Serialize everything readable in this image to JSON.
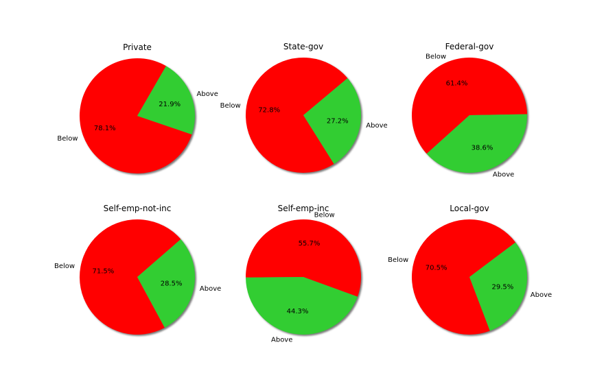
{
  "chart_data": [
    {
      "type": "pie",
      "title": "Private",
      "labels": [
        "Below",
        "Above"
      ],
      "values": [
        78.1,
        21.9
      ],
      "percent_labels": [
        "78.1%",
        "21.9%"
      ],
      "colors": [
        "#ff0000",
        "#32cd32"
      ],
      "startangle_deg": 60
    },
    {
      "type": "pie",
      "title": "State-gov",
      "labels": [
        "Below",
        "Above"
      ],
      "values": [
        72.8,
        27.2
      ],
      "percent_labels": [
        "72.8%",
        "27.2%"
      ],
      "colors": [
        "#ff0000",
        "#32cd32"
      ],
      "startangle_deg": 40
    },
    {
      "type": "pie",
      "title": "Federal-gov",
      "labels": [
        "Below",
        "Above"
      ],
      "values": [
        61.4,
        38.6
      ],
      "percent_labels": [
        "61.4%",
        "38.6%"
      ],
      "colors": [
        "#ff0000",
        "#32cd32"
      ],
      "startangle_deg": 1
    },
    {
      "type": "pie",
      "title": "Self-emp-not-inc",
      "labels": [
        "Below",
        "Above"
      ],
      "values": [
        71.5,
        28.5
      ],
      "percent_labels": [
        "71.5%",
        "28.5%"
      ],
      "colors": [
        "#ff0000",
        "#32cd32"
      ],
      "startangle_deg": 41
    },
    {
      "type": "pie",
      "title": "Self-emp-inc",
      "labels": [
        "Below",
        "Above"
      ],
      "values": [
        55.7,
        44.3
      ],
      "percent_labels": [
        "55.7%",
        "44.3%"
      ],
      "colors": [
        "#ff0000",
        "#32cd32"
      ],
      "startangle_deg": -20
    },
    {
      "type": "pie",
      "title": "Local-gov",
      "labels": [
        "Below",
        "Above"
      ],
      "values": [
        70.5,
        29.5
      ],
      "percent_labels": [
        "70.5%",
        "29.5%"
      ],
      "colors": [
        "#ff0000",
        "#32cd32"
      ],
      "startangle_deg": 37
    }
  ]
}
